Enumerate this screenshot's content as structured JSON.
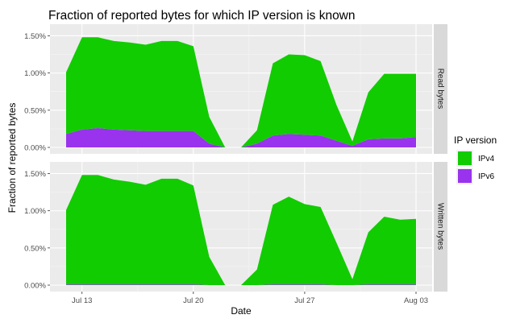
{
  "chart_data": {
    "type": "area",
    "title": "Fraction of reported bytes for which IP version is known",
    "xlabel": "Date",
    "ylabel": "Fraction of reported bytes",
    "x": [
      "2022-07-12",
      "2022-07-13",
      "2022-07-14",
      "2022-07-15",
      "2022-07-16",
      "2022-07-17",
      "2022-07-18",
      "2022-07-19",
      "2022-07-20",
      "2022-07-21",
      "2022-07-22",
      "2022-07-23",
      "2022-07-24",
      "2022-07-25",
      "2022-07-26",
      "2022-07-27",
      "2022-07-28",
      "2022-07-29",
      "2022-07-30",
      "2022-07-31",
      "2022-08-01",
      "2022-08-02",
      "2022-08-03"
    ],
    "x_ticks": [
      "Jul 13",
      "Jul 20",
      "Jul 27",
      "Aug 03"
    ],
    "y_ticks": [
      "0.00%",
      "0.50%",
      "1.00%",
      "1.50%"
    ],
    "ylim": [
      0,
      0.0157
    ],
    "legend": {
      "title": "IP version",
      "position": "right",
      "entries": [
        {
          "label": "IPv4",
          "color": "#11cc00"
        },
        {
          "label": "IPv6",
          "color": "#9933ee"
        }
      ]
    },
    "panels": [
      {
        "label": "Read bytes",
        "series": [
          {
            "name": "IPv6",
            "color": "#9933ee",
            "values": [
              0.0018,
              0.0024,
              0.0026,
              0.0024,
              0.0023,
              0.0022,
              0.0022,
              0.0022,
              0.0022,
              0.0005,
              0.0,
              0.0,
              0.0005,
              0.0016,
              0.0018,
              0.0017,
              0.0016,
              0.0009,
              0.0002,
              0.0011,
              0.0012,
              0.0012,
              0.0014
            ]
          },
          {
            "name": "IPv4",
            "color": "#11cc00",
            "values": [
              0.0083,
              0.0124,
              0.0122,
              0.0119,
              0.0118,
              0.0116,
              0.0121,
              0.0121,
              0.0114,
              0.0036,
              0.0,
              0.0,
              0.0018,
              0.0097,
              0.0107,
              0.0107,
              0.01,
              0.0048,
              0.0006,
              0.0063,
              0.0087,
              0.0087,
              0.0085
            ]
          }
        ]
      },
      {
        "label": "Written bytes",
        "series": [
          {
            "name": "IPv6",
            "color": "#9933ee",
            "values": [
              0.0001,
              0.0001,
              0.0001,
              0.0001,
              0.0001,
              0.0001,
              0.0001,
              0.0001,
              0.0001,
              0.0,
              0.0,
              0.0,
              0.0,
              0.0001,
              0.0001,
              0.0001,
              0.0001,
              0.0,
              0.0,
              0.0001,
              0.0001,
              0.0001,
              0.0001
            ]
          },
          {
            "name": "IPv4",
            "color": "#11cc00",
            "values": [
              0.01,
              0.0147,
              0.0147,
              0.0141,
              0.0138,
              0.0134,
              0.0142,
              0.0142,
              0.0133,
              0.0038,
              0.0,
              0.0,
              0.0021,
              0.0107,
              0.0118,
              0.0108,
              0.0104,
              0.0057,
              0.0008,
              0.007,
              0.0091,
              0.0087,
              0.0088
            ]
          }
        ]
      }
    ]
  }
}
